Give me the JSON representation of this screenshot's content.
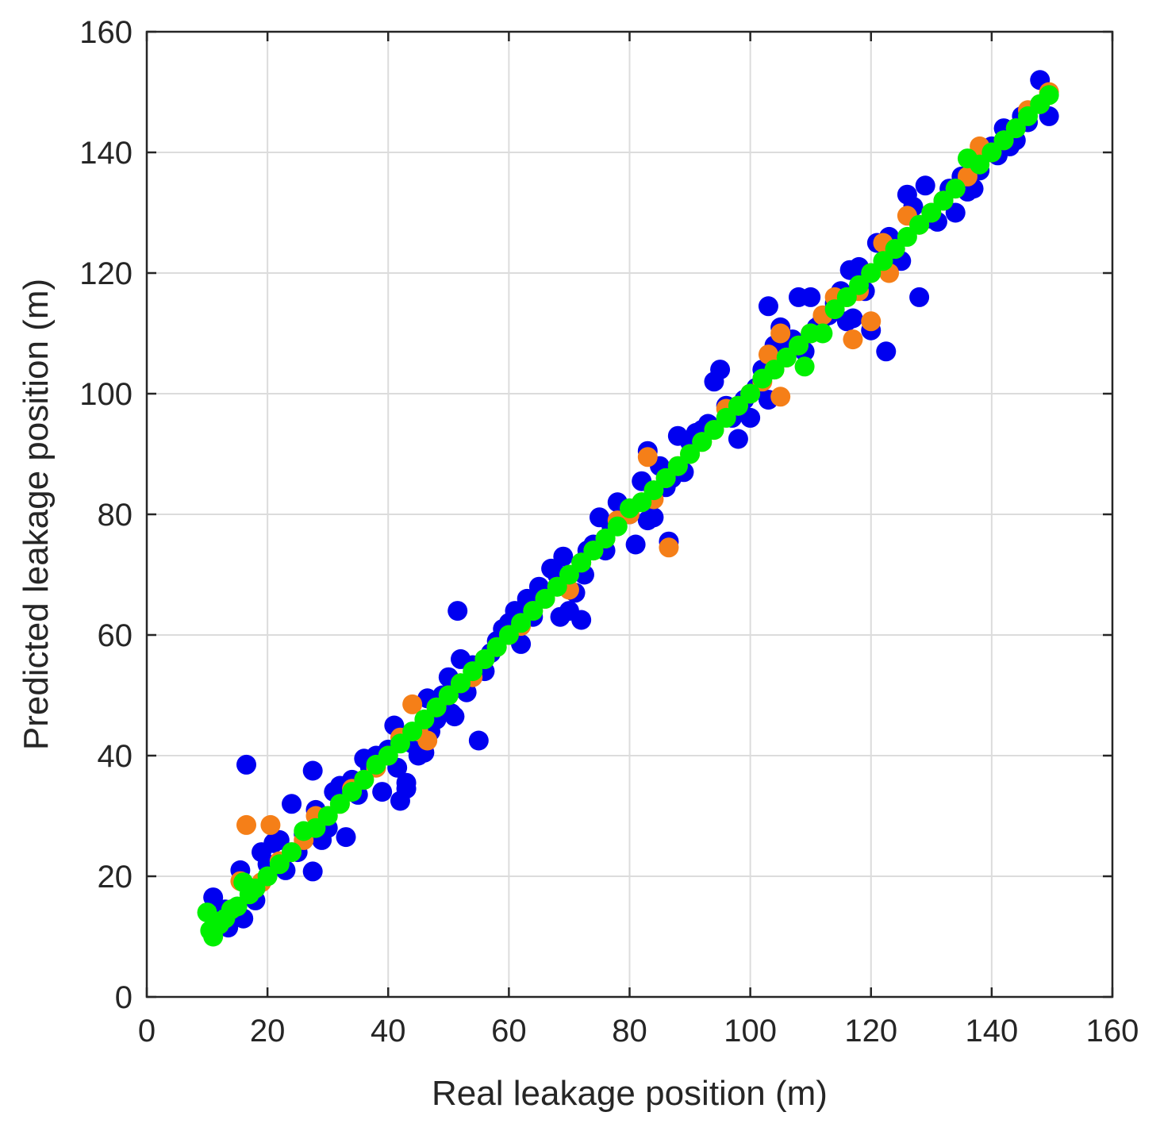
{
  "chart_data": {
    "type": "scatter",
    "title": "",
    "xlabel": "Real leakage position (m)",
    "ylabel": "Predicted leakage position (m)",
    "xlim": [
      0,
      160
    ],
    "ylim": [
      0,
      160
    ],
    "xticks": [
      0,
      20,
      40,
      60,
      80,
      100,
      120,
      140,
      160
    ],
    "yticks": [
      0,
      20,
      40,
      60,
      80,
      100,
      120,
      140,
      160
    ],
    "grid": true,
    "legend": "none",
    "reference_line": {
      "from": [
        10,
        10
      ],
      "to": [
        150,
        150
      ],
      "color": "#9fd7e0"
    },
    "series": [
      {
        "color": "#0000f0",
        "points": [
          [
            11,
            16.5
          ],
          [
            12,
            13
          ],
          [
            13,
            14.5
          ],
          [
            13.5,
            11.5
          ],
          [
            15,
            13.5
          ],
          [
            15.5,
            21
          ],
          [
            16,
            13
          ],
          [
            16.5,
            38.5
          ],
          [
            18,
            16
          ],
          [
            19,
            24
          ],
          [
            20,
            22
          ],
          [
            21,
            25.5
          ],
          [
            22,
            26
          ],
          [
            23,
            21
          ],
          [
            24,
            32
          ],
          [
            25,
            24
          ],
          [
            26,
            27
          ],
          [
            27.5,
            37.5
          ],
          [
            27.5,
            20.8
          ],
          [
            28,
            31
          ],
          [
            29,
            26
          ],
          [
            30,
            28
          ],
          [
            31,
            34
          ],
          [
            32,
            35
          ],
          [
            33,
            26.5
          ],
          [
            34,
            36
          ],
          [
            35,
            33.5
          ],
          [
            36,
            39.5
          ],
          [
            37,
            38
          ],
          [
            38,
            40
          ],
          [
            39,
            34
          ],
          [
            40,
            41
          ],
          [
            41,
            45
          ],
          [
            41.5,
            38
          ],
          [
            42,
            32.5
          ],
          [
            43,
            35.5
          ],
          [
            43,
            34.5
          ],
          [
            44,
            42
          ],
          [
            45,
            40
          ],
          [
            46,
            40.5
          ],
          [
            46.5,
            49.5
          ],
          [
            47,
            44
          ],
          [
            48,
            46
          ],
          [
            49,
            50
          ],
          [
            50,
            53
          ],
          [
            50.5,
            47
          ],
          [
            51,
            46.5
          ],
          [
            51.5,
            64
          ],
          [
            52,
            56
          ],
          [
            53,
            50.5
          ],
          [
            54,
            55
          ],
          [
            55,
            42.5
          ],
          [
            56,
            54
          ],
          [
            57,
            57
          ],
          [
            58,
            59
          ],
          [
            59,
            61
          ],
          [
            60,
            62
          ],
          [
            61,
            64
          ],
          [
            62,
            58.5
          ],
          [
            63,
            66
          ],
          [
            64,
            63
          ],
          [
            65,
            68
          ],
          [
            66,
            67
          ],
          [
            67,
            71
          ],
          [
            68,
            70
          ],
          [
            68.5,
            63
          ],
          [
            69,
            73
          ],
          [
            70,
            64
          ],
          [
            71,
            67
          ],
          [
            72,
            62.5
          ],
          [
            72.5,
            70
          ],
          [
            73,
            74
          ],
          [
            74,
            75
          ],
          [
            75,
            79.5
          ],
          [
            76,
            74
          ],
          [
            77,
            78
          ],
          [
            78,
            82
          ],
          [
            80,
            80
          ],
          [
            81,
            75
          ],
          [
            82,
            85.5
          ],
          [
            83,
            90.5
          ],
          [
            83,
            79
          ],
          [
            84,
            79.5
          ],
          [
            85,
            88
          ],
          [
            86,
            84.5
          ],
          [
            86.5,
            75.5
          ],
          [
            87,
            86
          ],
          [
            88,
            93
          ],
          [
            89,
            87
          ],
          [
            90,
            92
          ],
          [
            91,
            93.5
          ],
          [
            92,
            94
          ],
          [
            93,
            95
          ],
          [
            94,
            102
          ],
          [
            95,
            104
          ],
          [
            96,
            98
          ],
          [
            97,
            96
          ],
          [
            98,
            92.5
          ],
          [
            99,
            99
          ],
          [
            100,
            96
          ],
          [
            101,
            101
          ],
          [
            102,
            104
          ],
          [
            103,
            114.5
          ],
          [
            103,
            99
          ],
          [
            104,
            108
          ],
          [
            105,
            111
          ],
          [
            106,
            107
          ],
          [
            107,
            109
          ],
          [
            108,
            116
          ],
          [
            109,
            107
          ],
          [
            110,
            116
          ],
          [
            111,
            111
          ],
          [
            112,
            112.5
          ],
          [
            113,
            113
          ],
          [
            114,
            115
          ],
          [
            115,
            117
          ],
          [
            116,
            112
          ],
          [
            116.5,
            120.5
          ],
          [
            117,
            112.5
          ],
          [
            118,
            121
          ],
          [
            119,
            117
          ],
          [
            120,
            110.5
          ],
          [
            121,
            125
          ],
          [
            122,
            121
          ],
          [
            122.5,
            107
          ],
          [
            123,
            126
          ],
          [
            124,
            124
          ],
          [
            125,
            122
          ],
          [
            126,
            133
          ],
          [
            127,
            131
          ],
          [
            128,
            116
          ],
          [
            129,
            134.5
          ],
          [
            130,
            129
          ],
          [
            131,
            128.5
          ],
          [
            132,
            132
          ],
          [
            133,
            134
          ],
          [
            134,
            130
          ],
          [
            135,
            136
          ],
          [
            136,
            133.5
          ],
          [
            137,
            134
          ],
          [
            138,
            137
          ],
          [
            139,
            140
          ],
          [
            140,
            141
          ],
          [
            141,
            139.5
          ],
          [
            142,
            144
          ],
          [
            143,
            141
          ],
          [
            144,
            142
          ],
          [
            145,
            146
          ],
          [
            146,
            145
          ],
          [
            148,
            152
          ],
          [
            149.5,
            146
          ]
        ]
      },
      {
        "color": "#f57f18",
        "points": [
          [
            12,
            12
          ],
          [
            14,
            14.5
          ],
          [
            15.5,
            19.2
          ],
          [
            16.5,
            28.5
          ],
          [
            18,
            18
          ],
          [
            19,
            19
          ],
          [
            20.5,
            28.5
          ],
          [
            22,
            22.5
          ],
          [
            24,
            24
          ],
          [
            26,
            26
          ],
          [
            28,
            30
          ],
          [
            30,
            30
          ],
          [
            32,
            32
          ],
          [
            34,
            34.5
          ],
          [
            36,
            36
          ],
          [
            38,
            38
          ],
          [
            40,
            40
          ],
          [
            42,
            43
          ],
          [
            44,
            48.5
          ],
          [
            45,
            44
          ],
          [
            46.5,
            42.5
          ],
          [
            48,
            48
          ],
          [
            50,
            50
          ],
          [
            52,
            52
          ],
          [
            54,
            53
          ],
          [
            56,
            56
          ],
          [
            58,
            58
          ],
          [
            60,
            60
          ],
          [
            62,
            61.5
          ],
          [
            64,
            64
          ],
          [
            66,
            66
          ],
          [
            68,
            68
          ],
          [
            70,
            67.5
          ],
          [
            72,
            72
          ],
          [
            74,
            74
          ],
          [
            76,
            76
          ],
          [
            78,
            79
          ],
          [
            80,
            80
          ],
          [
            82,
            82
          ],
          [
            83,
            89.5
          ],
          [
            84,
            82.5
          ],
          [
            86,
            86
          ],
          [
            86.5,
            74.5
          ],
          [
            88,
            88
          ],
          [
            90,
            90
          ],
          [
            92,
            92
          ],
          [
            94,
            94
          ],
          [
            96,
            97.5
          ],
          [
            98,
            98
          ],
          [
            100,
            100
          ],
          [
            102,
            102
          ],
          [
            103,
            106.5
          ],
          [
            104,
            104
          ],
          [
            105,
            110
          ],
          [
            105,
            99.5
          ],
          [
            106,
            106
          ],
          [
            108,
            108
          ],
          [
            110,
            110
          ],
          [
            112,
            113
          ],
          [
            114,
            116
          ],
          [
            116,
            116
          ],
          [
            117,
            109
          ],
          [
            118,
            117
          ],
          [
            120,
            112
          ],
          [
            120,
            120
          ],
          [
            122,
            125
          ],
          [
            123,
            120
          ],
          [
            124,
            124
          ],
          [
            126,
            129.5
          ],
          [
            128,
            128
          ],
          [
            130,
            130
          ],
          [
            132,
            132
          ],
          [
            134,
            134
          ],
          [
            136,
            136
          ],
          [
            138,
            141
          ],
          [
            140,
            140
          ],
          [
            142,
            142
          ],
          [
            144,
            144
          ],
          [
            146,
            147
          ],
          [
            148,
            148
          ],
          [
            149.5,
            150
          ]
        ]
      },
      {
        "color": "#00f000",
        "points": [
          [
            10,
            14
          ],
          [
            10.5,
            11
          ],
          [
            11,
            10
          ],
          [
            11.5,
            12.5
          ],
          [
            12,
            12
          ],
          [
            13,
            13
          ],
          [
            14,
            14.5
          ],
          [
            15,
            15
          ],
          [
            16,
            19
          ],
          [
            17,
            17
          ],
          [
            18,
            18
          ],
          [
            20,
            20
          ],
          [
            22,
            22
          ],
          [
            24,
            24
          ],
          [
            26,
            27.5
          ],
          [
            28,
            28
          ],
          [
            30,
            30
          ],
          [
            32,
            32
          ],
          [
            34,
            34
          ],
          [
            36,
            36
          ],
          [
            38,
            38.5
          ],
          [
            40,
            40
          ],
          [
            42,
            42
          ],
          [
            44,
            44
          ],
          [
            46,
            46
          ],
          [
            48,
            48
          ],
          [
            50,
            50
          ],
          [
            52,
            52
          ],
          [
            54,
            54
          ],
          [
            56,
            56
          ],
          [
            58,
            58
          ],
          [
            60,
            60
          ],
          [
            62,
            62
          ],
          [
            64,
            64
          ],
          [
            66,
            66
          ],
          [
            68,
            68
          ],
          [
            70,
            70
          ],
          [
            72,
            72
          ],
          [
            74,
            74
          ],
          [
            76,
            76
          ],
          [
            78,
            78
          ],
          [
            80,
            81
          ],
          [
            82,
            82
          ],
          [
            84,
            84
          ],
          [
            86,
            86
          ],
          [
            88,
            88
          ],
          [
            90,
            90
          ],
          [
            92,
            92
          ],
          [
            94,
            94
          ],
          [
            96,
            96
          ],
          [
            98,
            98
          ],
          [
            100,
            100
          ],
          [
            102,
            102.5
          ],
          [
            104,
            104
          ],
          [
            106,
            106
          ],
          [
            108,
            108
          ],
          [
            109,
            104.5
          ],
          [
            110,
            110
          ],
          [
            112,
            110
          ],
          [
            114,
            114
          ],
          [
            116,
            116
          ],
          [
            118,
            118
          ],
          [
            120,
            120
          ],
          [
            122,
            122
          ],
          [
            124,
            124
          ],
          [
            126,
            126
          ],
          [
            128,
            128
          ],
          [
            130,
            130
          ],
          [
            132,
            132
          ],
          [
            134,
            134
          ],
          [
            136,
            139
          ],
          [
            138,
            138
          ],
          [
            140,
            140
          ],
          [
            142,
            142
          ],
          [
            144,
            144
          ],
          [
            146,
            146
          ],
          [
            148,
            148
          ],
          [
            149.5,
            149.5
          ]
        ]
      }
    ]
  }
}
